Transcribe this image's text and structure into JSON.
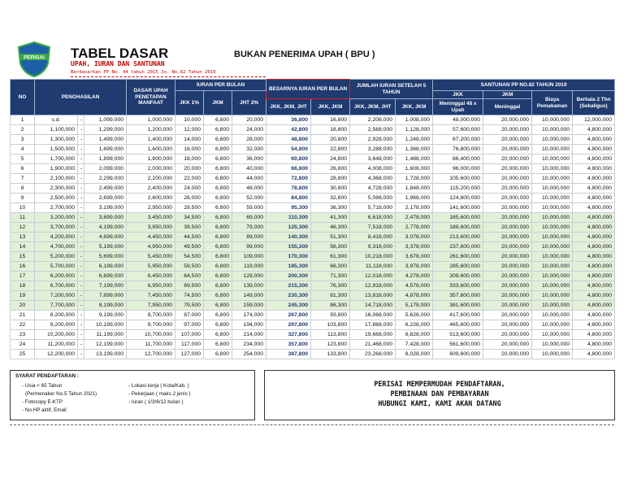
{
  "header": {
    "logo": "PERISAI",
    "title": "TABEL DASAR",
    "subtitle": "BUKAN PENERIMA UPAH ( BPU )",
    "tagline": "UPAH, IURAN DAN SANTUNAN",
    "basis": "Berdasarkan PP No. 44 tahun 2015 Jo. No.82 Tahun 2019"
  },
  "table": {
    "head": {
      "no": "NO",
      "income": "PENGHASILAN",
      "base": "DASAR UPAH PENETAPAN MANFAAT",
      "monthly": "IURAN PER BULAN",
      "total": "BESARNYA IURAN PER BULAN",
      "five": "JUMLAH IURAN SETELAH 5 TAHUN",
      "benefit": "SANTUNAN PP NO.82 TAHUN 2019",
      "jkk_pct": "JKK 1%",
      "jkm": "JKM",
      "jht_pct": "JHT 2%",
      "b_jkk": "JKK",
      "b_jkm": "JKM",
      "funeral": "Biaya Pemakaman",
      "periodic": "Berkala 2 Thn (Sekaligus)",
      "t_all": "JKK, JKM, JHT",
      "t_two": "JKK, JKM",
      "f_all": "JKK, JKM, JHT",
      "f_two": "JKK, JKM",
      "death48": "Meninggal 48 x Upah",
      "death": "Meninggal"
    },
    "rows": [
      [
        "1",
        "s.d.",
        "-",
        "1,099,000",
        "1,000,000",
        "10,000",
        "6,800",
        "20,000",
        "36,800",
        "16,800",
        "2,208,000",
        "1,008,000",
        "48,000,000",
        "20,000,000",
        "10,000,000",
        "12,000,000"
      ],
      [
        "2",
        "1,100,000",
        "-",
        "1,299,000",
        "1,200,000",
        "12,000",
        "6,800",
        "24,000",
        "42,800",
        "18,800",
        "2,568,000",
        "1,128,000",
        "57,600,000",
        "20,000,000",
        "10,000,000",
        "4,800,000"
      ],
      [
        "3",
        "1,300,000",
        "-",
        "1,499,000",
        "1,400,000",
        "14,000",
        "6,800",
        "28,000",
        "48,800",
        "20,800",
        "2,928,000",
        "1,248,000",
        "67,200,000",
        "20,000,000",
        "10,000,000",
        "4,800,000"
      ],
      [
        "4",
        "1,500,000",
        "-",
        "1,699,000",
        "1,600,000",
        "16,000",
        "6,800",
        "32,000",
        "54,800",
        "22,800",
        "3,288,000",
        "1,368,000",
        "76,800,000",
        "20,000,000",
        "10,000,000",
        "4,800,000"
      ],
      [
        "5",
        "1,700,000",
        "-",
        "1,899,000",
        "1,800,000",
        "18,000",
        "6,800",
        "36,000",
        "60,800",
        "24,800",
        "3,648,000",
        "1,488,000",
        "86,400,000",
        "20,000,000",
        "10,000,000",
        "4,800,000"
      ],
      [
        "6",
        "1,900,000",
        "-",
        "2,099,000",
        "2,000,000",
        "20,000",
        "6,800",
        "40,000",
        "66,800",
        "26,800",
        "4,008,000",
        "1,608,000",
        "96,000,000",
        "20,000,000",
        "10,000,000",
        "4,800,000"
      ],
      [
        "7",
        "2,100,000",
        "-",
        "2,299,000",
        "2,200,000",
        "22,000",
        "6,800",
        "44,000",
        "72,800",
        "28,800",
        "4,368,000",
        "1,728,000",
        "105,600,000",
        "20,000,000",
        "10,000,000",
        "4,800,000"
      ],
      [
        "8",
        "2,300,000",
        "-",
        "2,499,000",
        "2,400,000",
        "24,000",
        "6,800",
        "48,000",
        "78,800",
        "30,800",
        "4,728,000",
        "1,848,000",
        "115,200,000",
        "20,000,000",
        "10,000,000",
        "4,800,000"
      ],
      [
        "9",
        "2,500,000",
        "-",
        "2,699,000",
        "2,600,000",
        "26,000",
        "6,800",
        "52,000",
        "84,800",
        "32,800",
        "5,088,000",
        "1,968,000",
        "124,800,000",
        "20,000,000",
        "10,000,000",
        "4,800,000"
      ],
      [
        "10",
        "2,700,000",
        "-",
        "3,199,000",
        "2,950,000",
        "29,500",
        "6,800",
        "59,000",
        "95,300",
        "36,300",
        "5,718,000",
        "2,178,000",
        "141,600,000",
        "20,000,000",
        "10,000,000",
        "4,800,000"
      ],
      [
        "11",
        "3,200,000",
        "-",
        "3,699,000",
        "3,450,000",
        "34,500",
        "6,800",
        "69,000",
        "110,300",
        "41,300",
        "6,618,000",
        "2,478,000",
        "165,600,000",
        "20,000,000",
        "10,000,000",
        "4,800,000"
      ],
      [
        "12",
        "3,700,000",
        "-",
        "4,199,000",
        "3,950,000",
        "39,500",
        "6,800",
        "79,000",
        "125,300",
        "46,300",
        "7,518,000",
        "2,778,000",
        "189,600,000",
        "20,000,000",
        "10,000,000",
        "4,800,000"
      ],
      [
        "13",
        "4,200,000",
        "-",
        "4,699,000",
        "4,450,000",
        "44,500",
        "6,800",
        "89,000",
        "140,300",
        "51,300",
        "8,418,000",
        "3,078,000",
        "213,600,000",
        "20,000,000",
        "10,000,000",
        "4,800,000"
      ],
      [
        "14",
        "4,700,000",
        "-",
        "5,199,000",
        "4,950,000",
        "49,500",
        "6,800",
        "99,000",
        "155,300",
        "56,300",
        "9,318,000",
        "3,378,000",
        "237,600,000",
        "20,000,000",
        "10,000,000",
        "4,800,000"
      ],
      [
        "15",
        "5,200,000",
        "-",
        "5,699,000",
        "5,450,000",
        "54,500",
        "6,800",
        "109,000",
        "170,300",
        "61,300",
        "10,218,000",
        "3,678,000",
        "261,600,000",
        "20,000,000",
        "10,000,000",
        "4,800,000"
      ],
      [
        "16",
        "5,700,000",
        "-",
        "6,199,000",
        "5,950,000",
        "59,500",
        "6,800",
        "119,000",
        "185,300",
        "66,300",
        "11,118,000",
        "3,978,000",
        "285,600,000",
        "20,000,000",
        "10,000,000",
        "4,800,000"
      ],
      [
        "17",
        "6,200,000",
        "-",
        "6,699,000",
        "6,450,000",
        "64,500",
        "6,800",
        "129,000",
        "200,300",
        "71,300",
        "12,018,000",
        "4,278,000",
        "309,600,000",
        "20,000,000",
        "10,000,000",
        "4,800,000"
      ],
      [
        "18",
        "6,700,000",
        "-",
        "7,199,000",
        "6,950,000",
        "69,500",
        "6,800",
        "139,000",
        "215,300",
        "76,300",
        "12,918,000",
        "4,578,000",
        "333,600,000",
        "20,000,000",
        "10,000,000",
        "4,800,000"
      ],
      [
        "19",
        "7,200,000",
        "-",
        "7,699,000",
        "7,450,000",
        "74,500",
        "6,800",
        "149,000",
        "230,300",
        "81,300",
        "13,818,000",
        "4,878,000",
        "357,600,000",
        "20,000,000",
        "10,000,000",
        "4,800,000"
      ],
      [
        "20",
        "7,700,000",
        "-",
        "8,199,000",
        "7,950,000",
        "79,500",
        "6,800",
        "159,000",
        "245,300",
        "86,300",
        "14,718,000",
        "5,178,000",
        "381,600,000",
        "20,000,000",
        "10,000,000",
        "4,800,000"
      ],
      [
        "21",
        "8,200,000",
        "-",
        "9,199,000",
        "8,700,000",
        "87,000",
        "6,800",
        "174,000",
        "267,800",
        "93,800",
        "16,068,000",
        "5,628,000",
        "417,600,000",
        "20,000,000",
        "10,000,000",
        "4,800,000"
      ],
      [
        "22",
        "9,200,000",
        "-",
        "10,199,000",
        "9,700,000",
        "97,000",
        "6,800",
        "194,000",
        "297,800",
        "103,800",
        "17,868,000",
        "6,228,000",
        "465,600,000",
        "20,000,000",
        "10,000,000",
        "4,800,000"
      ],
      [
        "23",
        "10,200,000",
        "-",
        "11,199,000",
        "10,700,000",
        "107,000",
        "6,800",
        "214,000",
        "327,800",
        "113,800",
        "19,668,000",
        "6,828,000",
        "513,600,000",
        "20,000,000",
        "10,000,000",
        "4,800,000"
      ],
      [
        "24",
        "11,200,000",
        "-",
        "12,199,000",
        "11,700,000",
        "117,000",
        "6,800",
        "234,000",
        "357,800",
        "123,800",
        "21,468,000",
        "7,428,000",
        "561,600,000",
        "20,000,000",
        "10,000,000",
        "4,800,000"
      ],
      [
        "25",
        "12,200,000",
        "-",
        "13,199,000",
        "12,700,000",
        "127,000",
        "6,800",
        "254,000",
        "387,800",
        "133,800",
        "23,268,000",
        "8,028,000",
        "609,600,000",
        "20,000,000",
        "10,000,000",
        "4,800,000"
      ]
    ]
  },
  "requirements": {
    "title": "SYARAT PENDAFTARAN :",
    "left": [
      "- Usia < 65 Tahun",
      "(Permenaker No.5 Tahun 2021)",
      "- Fotocopy E-KTP",
      "- No.HP aktif, Email"
    ],
    "right": [
      "- Lokasi kerja ( Kota/Kab. )",
      "- Pekerjaan ( maks.2 jenis )",
      "- Iuran ( 1/3/6/12 bulan )"
    ]
  },
  "promo": [
    "PERISAI MEMPERMUDAH PENDAFTARAN,",
    "PEMBINAAN DAN PEMBAYARAN",
    "HUBUNGI KAMI, KAMI AKAN DATANG"
  ]
}
